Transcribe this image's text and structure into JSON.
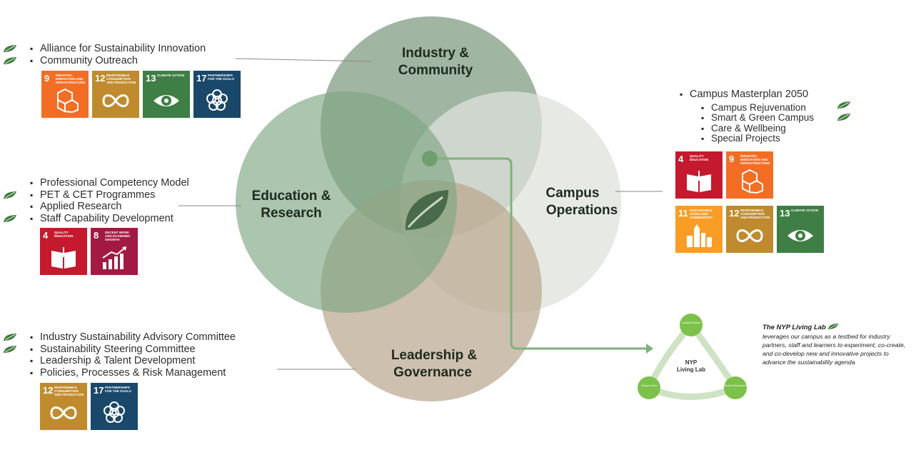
{
  "venn": {
    "top_label": [
      "Industry &",
      "Community"
    ],
    "left_label": [
      "Education &",
      "Research"
    ],
    "right_label": [
      "Campus",
      "Operations"
    ],
    "bottom_label": [
      "Leadership &",
      "Governance"
    ],
    "colors": {
      "industry": "#8fa892",
      "education": "#98b59a",
      "campus": "#e2e4df",
      "leadership": "#c8b8a2",
      "line": "#7fb17b",
      "node": "#8cc46a"
    }
  },
  "industry_panel": {
    "items": [
      "Alliance for Sustainability Innovation",
      "Community Outreach"
    ],
    "sdgs": [
      {
        "num": "9",
        "title": "Industry, innovation and infrastructure",
        "color": "#f36d25",
        "icon": "cubes-icon"
      },
      {
        "num": "12",
        "title": "Responsible consumption and production",
        "color": "#bf8b2e",
        "icon": "infinity-icon"
      },
      {
        "num": "13",
        "title": "Climate action",
        "color": "#3f7e44",
        "icon": "eye-icon"
      },
      {
        "num": "17",
        "title": "Partnerships for the goals",
        "color": "#19486a",
        "icon": "flower-icon"
      }
    ]
  },
  "education_panel": {
    "items": [
      "Professional Competency Model",
      "PET & CET Programmes",
      "Applied Research",
      "Staff Capability Development"
    ],
    "sdgs": [
      {
        "num": "4",
        "title": "Quality education",
        "color": "#c5192d",
        "icon": "book-icon"
      },
      {
        "num": "8",
        "title": "Decent work and economic growth",
        "color": "#a21942",
        "icon": "growth-icon"
      }
    ]
  },
  "leadership_panel": {
    "items": [
      "Industry Sustainability Advisory Committee",
      "Sustainability Steering Committee",
      "Leadership & Talent Development",
      "Policies, Processes & Risk Management"
    ],
    "sdgs": [
      {
        "num": "12",
        "title": "Responsible consumption and production",
        "color": "#bf8b2e",
        "icon": "infinity-icon"
      },
      {
        "num": "17",
        "title": "Partnerships for the goals",
        "color": "#19486a",
        "icon": "flower-icon"
      }
    ]
  },
  "campus_panel": {
    "main_item": "Campus Masterplan 2050",
    "sub_items": [
      "Campus Rejuvenation",
      "Smart & Green Campus",
      "Care & Wellbeing",
      "Special Projects"
    ],
    "sdgs_row1": [
      {
        "num": "4",
        "title": "Quality education",
        "color": "#c5192d",
        "icon": "book-icon"
      },
      {
        "num": "9",
        "title": "Industry, innovation and infrastructure",
        "color": "#f36d25",
        "icon": "cubes-icon"
      }
    ],
    "sdgs_row2": [
      {
        "num": "11",
        "title": "Sustainable cities and communities",
        "color": "#f99d26",
        "icon": "city-icon"
      },
      {
        "num": "12",
        "title": "Responsible consumption and production",
        "color": "#bf8b2e",
        "icon": "infinity-icon"
      },
      {
        "num": "13",
        "title": "Climate action",
        "color": "#3f7e44",
        "icon": "eye-icon"
      }
    ]
  },
  "living_lab": {
    "center_label_1": "NYP",
    "center_label_2": "Living Lab",
    "node_top": "Industry Partners",
    "node_left": "Campus Users",
    "node_right": "Student Researchers",
    "title": "The NYP Living Lab",
    "description": "leverages our campus as a testbed for industry partners, staff and learners to experiment, co-create, and co-develop new and innovative projects to advance the sustainability agenda"
  }
}
